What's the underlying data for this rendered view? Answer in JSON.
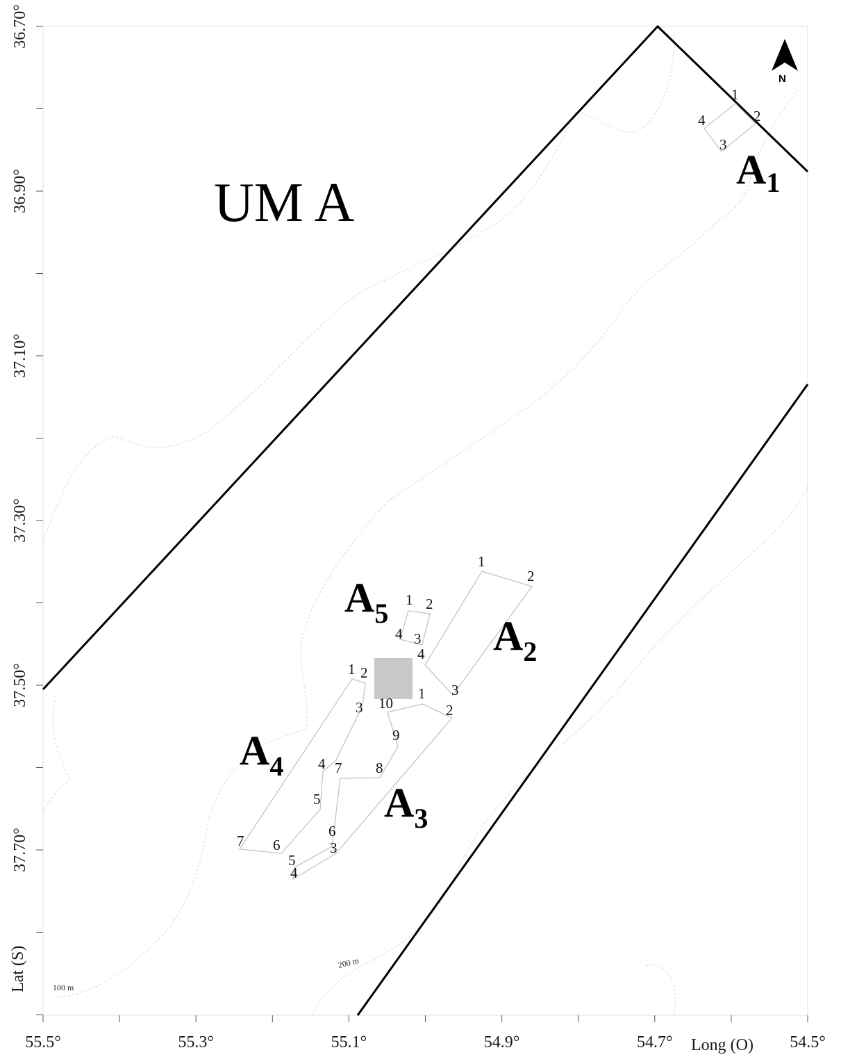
{
  "map": {
    "zone_label": "UM A",
    "x_axis_title": "Long (O)",
    "y_axis_title": "Lat (S)",
    "north_label": "N",
    "contour_labels": [
      "100 m",
      "200 m"
    ],
    "x_ticks": [
      {
        "value": -55.5,
        "label": "55.5°"
      },
      {
        "value": -55.3,
        "label": "55.3°"
      },
      {
        "value": -55.1,
        "label": "55.1°"
      },
      {
        "value": -54.9,
        "label": "54.9°"
      },
      {
        "value": -54.7,
        "label": "54.7°"
      },
      {
        "value": -54.5,
        "label": "54.5°"
      }
    ],
    "y_ticks": [
      {
        "value": -36.7,
        "label": "36.70°"
      },
      {
        "value": -36.9,
        "label": "36.90°"
      },
      {
        "value": -37.1,
        "label": "37.10°"
      },
      {
        "value": -37.3,
        "label": "37.30°"
      },
      {
        "value": -37.5,
        "label": "37.50°"
      },
      {
        "value": -37.7,
        "label": "37.70°"
      }
    ],
    "areas": [
      {
        "name": "A",
        "subscript": "1"
      },
      {
        "name": "A",
        "subscript": "2"
      },
      {
        "name": "A",
        "subscript": "3"
      },
      {
        "name": "A",
        "subscript": "4"
      },
      {
        "name": "A",
        "subscript": "5"
      }
    ]
  }
}
